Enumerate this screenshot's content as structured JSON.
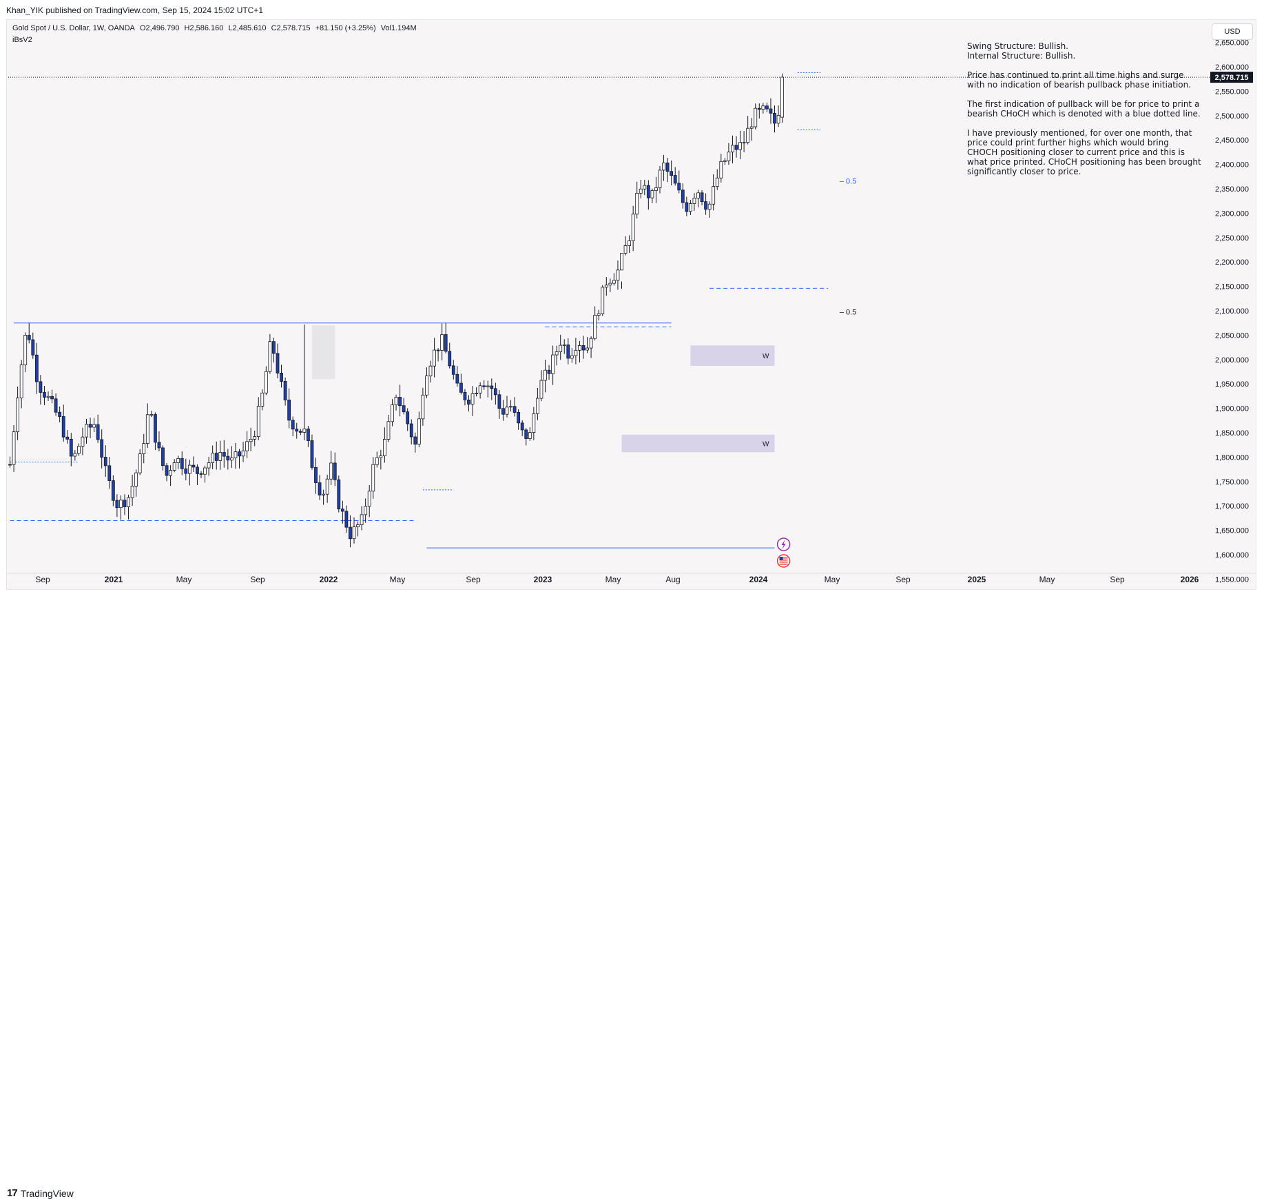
{
  "header": {
    "publisher": "Khan_YIK published on TradingView.com, Sep 15, 2024 15:02 UTC+1"
  },
  "legend": {
    "symbol": "Gold Spot / U.S. Dollar, 1W, OANDA",
    "open": "O2,496.790",
    "high": "H2,586.160",
    "low": "L2,485.610",
    "close": "C2,578.715",
    "change": "+81.150 (+3.25%)",
    "volume": "Vol1.194M",
    "indicator": "iBsV2"
  },
  "currency_button": "USD",
  "notes": {
    "line1": "Swing Structure: Bullish.",
    "line2": "Internal Structure: Bullish.",
    "para1": "Price has continued to print all time highs and surge with no indication of bearish pullback phase initiation.",
    "para2": "The first indication of pullback will be for price to print a bearish CHoCH which is denoted with a blue dotted line.",
    "para3": "I have previously mentioned, for over one month, that price could print further highs which would bring CHOCH positioning closer to current price and this is what price printed.  CHoCH positioning has been brought significantly closer to price."
  },
  "footer": {
    "brand": "TradingView",
    "brand_mark": "17"
  },
  "colors": {
    "bull": "#ffffff",
    "bear": "#1e3fa6",
    "wick": "#131722",
    "level": "#2962ff",
    "zone": "#d9d3ea",
    "shadow": "#e6e6e8"
  },
  "chart_data": {
    "type": "candlestick",
    "interval": "1W",
    "price_axis": {
      "ticks": [
        "1,550.000",
        "1,600.000",
        "1,650.000",
        "1,700.000",
        "1,750.000",
        "1,800.000",
        "1,850.000",
        "1,900.000",
        "1,950.000",
        "2,000.000",
        "2,050.000",
        "2,100.000",
        "2,150.000",
        "2,200.000",
        "2,250.000",
        "2,300.000",
        "2,350.000",
        "2,400.000",
        "2,450.000",
        "2,500.000",
        "2,550.000",
        "2,600.000",
        "2,650.000"
      ],
      "tick_values": [
        1550,
        1600,
        1650,
        1700,
        1750,
        1800,
        1850,
        1900,
        1950,
        2000,
        2050,
        2100,
        2150,
        2200,
        2250,
        2300,
        2350,
        2400,
        2450,
        2500,
        2550,
        2600,
        2650
      ],
      "range": [
        1520,
        2680
      ],
      "last_price_label": "2,578.715",
      "last_price": 2578.715
    },
    "time_axis": {
      "labels": [
        "Sep",
        "2021",
        "May",
        "Sep",
        "2022",
        "May",
        "Sep",
        "2023",
        "May",
        "Aug",
        "2024",
        "May",
        "Sep",
        "2025",
        "May",
        "Sep",
        "2026"
      ],
      "bold": [
        false,
        true,
        false,
        false,
        true,
        false,
        false,
        true,
        false,
        false,
        true,
        false,
        false,
        true,
        false,
        false,
        true
      ],
      "bar_index": [
        2,
        20,
        37,
        55,
        72,
        89,
        106,
        123,
        140,
        152,
        170,
        186,
        204,
        220,
        237,
        254,
        271
      ],
      "total_bars": 283
    },
    "levels": [
      {
        "style": "solid",
        "price": 2075,
        "from": 1,
        "to": 173
      },
      {
        "style": "dashed",
        "price": 2067,
        "from": 140,
        "to": 173
      },
      {
        "style": "dashed",
        "price": 1670,
        "from": 0,
        "to": 106
      },
      {
        "style": "solid",
        "price": 1614,
        "from": 109,
        "to": 200
      },
      {
        "style": "dotted",
        "price": 1790,
        "from": 0,
        "to": 18
      },
      {
        "style": "dotted",
        "price": 1733,
        "from": 108,
        "to": 116
      },
      {
        "style": "dashed",
        "price": 2146,
        "from": 183,
        "to": 214
      },
      {
        "style": "dotted",
        "price": 2471,
        "from": 206,
        "to": 212
      },
      {
        "style": "dotted",
        "price": 2588,
        "from": 206,
        "to": 212
      }
    ],
    "zones": [
      {
        "label": "W",
        "top": 2029,
        "bottom": 1987,
        "from": 178,
        "to": 200
      },
      {
        "label": "W",
        "top": 1846,
        "bottom": 1810,
        "from": 160,
        "to": 200
      }
    ],
    "fib_labels": [
      {
        "text": "0.5",
        "price": 2366,
        "bar": 217,
        "color": "#2962ff"
      },
      {
        "text": "0.5",
        "price": 2098,
        "bar": 217,
        "color": "#131722"
      }
    ],
    "candles": []
  }
}
